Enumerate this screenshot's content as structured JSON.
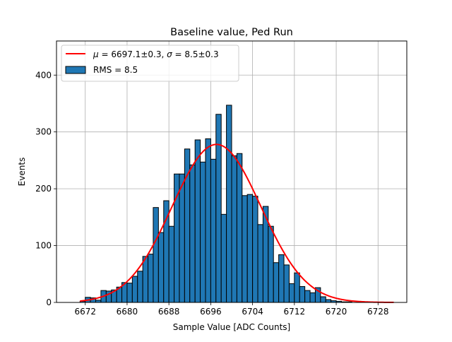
{
  "chart_data": {
    "type": "bar",
    "title": "Baseline value, Ped Run",
    "xlabel": "Sample Value [ADC Counts]",
    "ylabel": "Events",
    "xlim": [
      6666.5,
      6733.5
    ],
    "ylim": [
      0,
      460
    ],
    "xticks": [
      6672,
      6680,
      6688,
      6696,
      6704,
      6712,
      6720,
      6728
    ],
    "yticks": [
      0,
      100,
      200,
      300,
      400
    ],
    "grid": true,
    "legend_position": "top-left",
    "bin_width": 1,
    "bin_edges_start": 6671,
    "counts": [
      2,
      9,
      8,
      4,
      21,
      20,
      22,
      27,
      35,
      34,
      46,
      55,
      81,
      85,
      167,
      123,
      179,
      134,
      226,
      226,
      270,
      242,
      286,
      247,
      288,
      252,
      331,
      155,
      347,
      258,
      262,
      188,
      190,
      187,
      137,
      169,
      134,
      70,
      84,
      66,
      33,
      52,
      28,
      21,
      17,
      26,
      10,
      5,
      3,
      2,
      1,
      1
    ],
    "series": [
      {
        "name": "RMS = 8.5",
        "kind": "histogram",
        "color": "#1f77b4",
        "edge_color": "#000000"
      },
      {
        "name": "$\\mu = 6697.1\\pm0.3$, $\\sigma = 8.5\\pm0.3$",
        "kind": "gaussian-fit",
        "color": "#ff0000",
        "mu": 6697.1,
        "sigma": 8.5,
        "amplitude": 278,
        "x_range": [
          6671,
          6731
        ]
      }
    ],
    "legend": {
      "fit_label_parts": [
        "μ",
        " = 6697.1±0.3, ",
        "σ",
        " = 8.5±0.3"
      ],
      "hist_label": "RMS = 8.5"
    }
  }
}
